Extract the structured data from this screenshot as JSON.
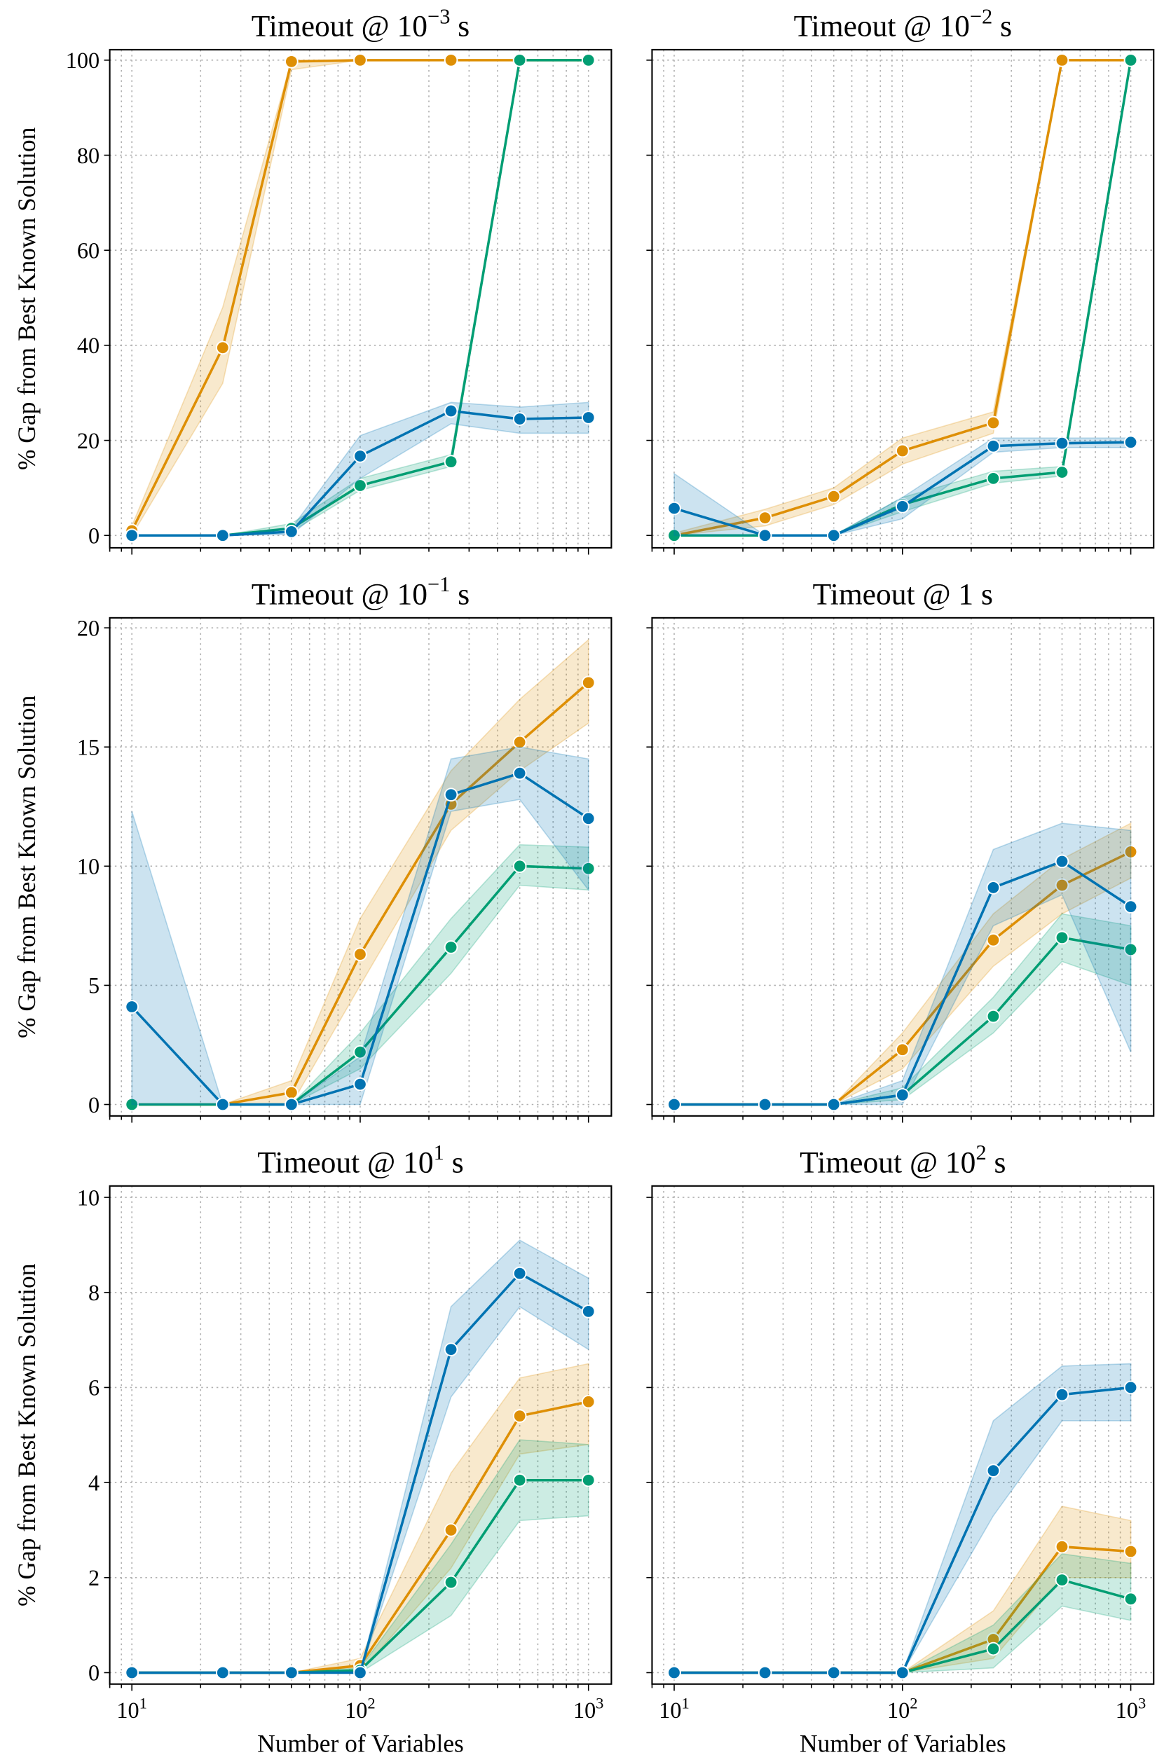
{
  "chart_data": [
    {
      "type": "line",
      "title": {
        "base": "Timeout @ 10",
        "exp": "−3",
        "suffix": " s"
      },
      "xlabel": "",
      "ylabel": "% Gap from Best Known Solution",
      "xscale": "log",
      "xlim": [
        8,
        1260
      ],
      "ylim": [
        -2.6,
        102.2
      ],
      "yticks": [
        0,
        20,
        40,
        60,
        80,
        100
      ],
      "show_yticklabels": true,
      "show_xticklabels": false,
      "grid": true,
      "x": [
        10,
        25,
        50,
        100,
        250,
        500,
        1000
      ],
      "series": [
        {
          "key": "orange",
          "color": "#de8f05",
          "values": [
            1,
            39.5,
            99.7,
            100,
            100,
            100,
            100
          ],
          "lo": [
            0,
            32,
            98,
            100,
            100,
            100,
            100
          ],
          "hi": [
            2,
            48,
            100,
            100,
            100,
            100,
            100
          ]
        },
        {
          "key": "green",
          "color": "#029e73",
          "values": [
            0,
            0,
            1.5,
            10.5,
            15.5,
            100,
            100
          ],
          "lo": [
            0,
            0,
            0.8,
            9.5,
            14.5,
            100,
            100
          ],
          "hi": [
            0,
            0,
            2.5,
            12,
            17,
            100,
            100
          ]
        },
        {
          "key": "blue",
          "color": "#0173b2",
          "values": [
            0,
            0,
            0.8,
            16.7,
            26.2,
            24.5,
            24.8
          ],
          "lo": [
            0,
            0,
            0.2,
            12,
            23.5,
            21.5,
            21.5
          ],
          "hi": [
            0,
            0,
            1.5,
            21,
            28,
            27,
            28
          ]
        }
      ]
    },
    {
      "type": "line",
      "title": {
        "base": "Timeout @ 10",
        "exp": "−2",
        "suffix": " s"
      },
      "xlabel": "",
      "ylabel": "",
      "xscale": "log",
      "xlim": [
        8,
        1260
      ],
      "ylim": [
        -2.6,
        102.2
      ],
      "yticks": [
        0,
        20,
        40,
        60,
        80,
        100
      ],
      "show_yticklabels": false,
      "show_xticklabels": false,
      "grid": true,
      "x": [
        10,
        25,
        50,
        100,
        250,
        500,
        1000
      ],
      "series": [
        {
          "key": "orange",
          "color": "#de8f05",
          "values": [
            0,
            3.7,
            8.2,
            17.8,
            23.7,
            100,
            100
          ],
          "lo": [
            0,
            2,
            6.5,
            15,
            21.5,
            100,
            100
          ],
          "hi": [
            0.5,
            5.5,
            10,
            20.5,
            26,
            100,
            100
          ]
        },
        {
          "key": "green",
          "color": "#029e73",
          "values": [
            0,
            0,
            0,
            6.5,
            12,
            13.3,
            100
          ],
          "lo": [
            0,
            0,
            0,
            5,
            11,
            12.5,
            100
          ],
          "hi": [
            0,
            0,
            0,
            8,
            13.5,
            14.5,
            100
          ]
        },
        {
          "key": "blue",
          "color": "#0173b2",
          "values": [
            5.7,
            0,
            0,
            6.1,
            18.8,
            19.4,
            19.6
          ],
          "lo": [
            0,
            0,
            0,
            3.5,
            17.5,
            18.5,
            18.5
          ],
          "hi": [
            13,
            0,
            0,
            8,
            20.5,
            20.5,
            20.5
          ]
        }
      ]
    },
    {
      "type": "line",
      "title": {
        "base": "Timeout @ 10",
        "exp": "−1",
        "suffix": " s"
      },
      "xlabel": "",
      "ylabel": "% Gap from Best Known Solution",
      "xscale": "log",
      "xlim": [
        8,
        1260
      ],
      "ylim": [
        -0.48,
        20.42
      ],
      "yticks": [
        0,
        5,
        10,
        15,
        20
      ],
      "show_yticklabels": true,
      "show_xticklabels": false,
      "grid": true,
      "x": [
        10,
        25,
        50,
        100,
        250,
        500,
        1000
      ],
      "series": [
        {
          "key": "orange",
          "color": "#de8f05",
          "values": [
            0,
            0,
            0.5,
            6.3,
            12.6,
            15.2,
            17.7
          ],
          "lo": [
            0,
            0,
            0,
            5,
            11.5,
            14,
            16
          ],
          "hi": [
            0,
            0,
            1,
            7.8,
            14,
            17,
            19.5
          ]
        },
        {
          "key": "green",
          "color": "#029e73",
          "values": [
            0,
            0,
            0,
            2.2,
            6.6,
            10,
            9.9
          ],
          "lo": [
            0,
            0,
            0,
            1.5,
            5.5,
            9.2,
            9
          ],
          "hi": [
            0,
            0,
            0,
            3,
            7.8,
            10.9,
            10.8
          ]
        },
        {
          "key": "blue",
          "color": "#0173b2",
          "values": [
            4.1,
            0,
            0,
            0.85,
            13,
            13.9,
            12
          ],
          "lo": [
            0,
            0,
            0,
            0,
            12.3,
            12.8,
            9
          ],
          "hi": [
            12.3,
            0,
            0,
            2,
            14.5,
            15,
            14.5
          ]
        }
      ]
    },
    {
      "type": "line",
      "title": {
        "base": "Timeout @ 1",
        "exp": "",
        "suffix": " s"
      },
      "xlabel": "",
      "ylabel": "",
      "xscale": "log",
      "xlim": [
        8,
        1260
      ],
      "ylim": [
        -0.48,
        20.42
      ],
      "yticks": [
        0,
        5,
        10,
        15,
        20
      ],
      "show_yticklabels": false,
      "show_xticklabels": false,
      "grid": true,
      "x": [
        10,
        25,
        50,
        100,
        250,
        500,
        1000
      ],
      "series": [
        {
          "key": "orange",
          "color": "#de8f05",
          "values": [
            0,
            0,
            0,
            2.3,
            6.9,
            9.2,
            10.6
          ],
          "lo": [
            0,
            0,
            0,
            1.5,
            5.8,
            8,
            9.5
          ],
          "hi": [
            0,
            0,
            0,
            3,
            8,
            10.3,
            11.8
          ]
        },
        {
          "key": "green",
          "color": "#029e73",
          "values": [
            0,
            0,
            0,
            0.4,
            3.7,
            7,
            6.5
          ],
          "lo": [
            0,
            0,
            0,
            0.2,
            3,
            6,
            5
          ],
          "hi": [
            0,
            0,
            0,
            0.7,
            4.5,
            8,
            7.5
          ]
        },
        {
          "key": "blue",
          "color": "#0173b2",
          "values": [
            0,
            0,
            0,
            0.4,
            9.1,
            10.2,
            8.3
          ],
          "lo": [
            0,
            0,
            0,
            0,
            7.5,
            8.8,
            2.2
          ],
          "hi": [
            0,
            0,
            0,
            1,
            10.7,
            11.8,
            11.5
          ]
        }
      ]
    },
    {
      "type": "line",
      "title": {
        "base": "Timeout @ 10",
        "exp": "1",
        "suffix": " s"
      },
      "xlabel": "Number of Variables",
      "ylabel": "% Gap from Best Known Solution",
      "xscale": "log",
      "xlim": [
        8,
        1260
      ],
      "ylim": [
        -0.24,
        10.24
      ],
      "yticks": [
        0,
        2,
        4,
        6,
        8,
        10
      ],
      "show_yticklabels": true,
      "show_xticklabels": true,
      "grid": true,
      "x": [
        10,
        25,
        50,
        100,
        250,
        500,
        1000
      ],
      "series": [
        {
          "key": "orange",
          "color": "#de8f05",
          "values": [
            0,
            0,
            0,
            0.15,
            3,
            5.4,
            5.7
          ],
          "lo": [
            0,
            0,
            0,
            0,
            2.2,
            4.6,
            4.8
          ],
          "hi": [
            0,
            0,
            0,
            0.3,
            4.2,
            6.2,
            6.5
          ]
        },
        {
          "key": "green",
          "color": "#029e73",
          "values": [
            0,
            0,
            0,
            0.05,
            1.9,
            4.05,
            4.05
          ],
          "lo": [
            0,
            0,
            0,
            0,
            1.2,
            3.2,
            3.3
          ],
          "hi": [
            0,
            0,
            0,
            0.1,
            2.7,
            4.9,
            4.8
          ]
        },
        {
          "key": "blue",
          "color": "#0173b2",
          "values": [
            0,
            0,
            0,
            0,
            6.8,
            8.4,
            7.6
          ],
          "lo": [
            0,
            0,
            0,
            0,
            5.8,
            7.7,
            6.8
          ],
          "hi": [
            0,
            0,
            0,
            0,
            7.7,
            9.1,
            8.3
          ]
        }
      ]
    },
    {
      "type": "line",
      "title": {
        "base": "Timeout @ 10",
        "exp": "2",
        "suffix": " s"
      },
      "xlabel": "Number of Variables",
      "ylabel": "",
      "xscale": "log",
      "xlim": [
        8,
        1260
      ],
      "ylim": [
        -0.24,
        10.24
      ],
      "yticks": [
        0,
        2,
        4,
        6,
        8,
        10
      ],
      "show_yticklabels": false,
      "show_xticklabels": true,
      "grid": true,
      "x": [
        10,
        25,
        50,
        100,
        250,
        500,
        1000
      ],
      "series": [
        {
          "key": "orange",
          "color": "#de8f05",
          "values": [
            0,
            0,
            0,
            0,
            0.7,
            2.65,
            2.55
          ],
          "lo": [
            0,
            0,
            0,
            0,
            0.3,
            2,
            2
          ],
          "hi": [
            0,
            0,
            0,
            0,
            1.3,
            3.5,
            3.2
          ]
        },
        {
          "key": "green",
          "color": "#029e73",
          "values": [
            0,
            0,
            0,
            0,
            0.5,
            1.95,
            1.55
          ],
          "lo": [
            0,
            0,
            0,
            0,
            0.1,
            1.4,
            1.1
          ],
          "hi": [
            0,
            0,
            0,
            0,
            1,
            2.5,
            2.3
          ]
        },
        {
          "key": "blue",
          "color": "#0173b2",
          "values": [
            0,
            0,
            0,
            0,
            4.25,
            5.85,
            6
          ],
          "lo": [
            0,
            0,
            0,
            0,
            3.3,
            5.3,
            5.3
          ],
          "hi": [
            0,
            0,
            0,
            0,
            5.3,
            6.45,
            6.5
          ]
        }
      ]
    }
  ],
  "xtick_labels": [
    {
      "base": "10",
      "exp": "1",
      "value": 10
    },
    {
      "base": "10",
      "exp": "2",
      "value": 100
    },
    {
      "base": "10",
      "exp": "3",
      "value": 1000
    }
  ]
}
